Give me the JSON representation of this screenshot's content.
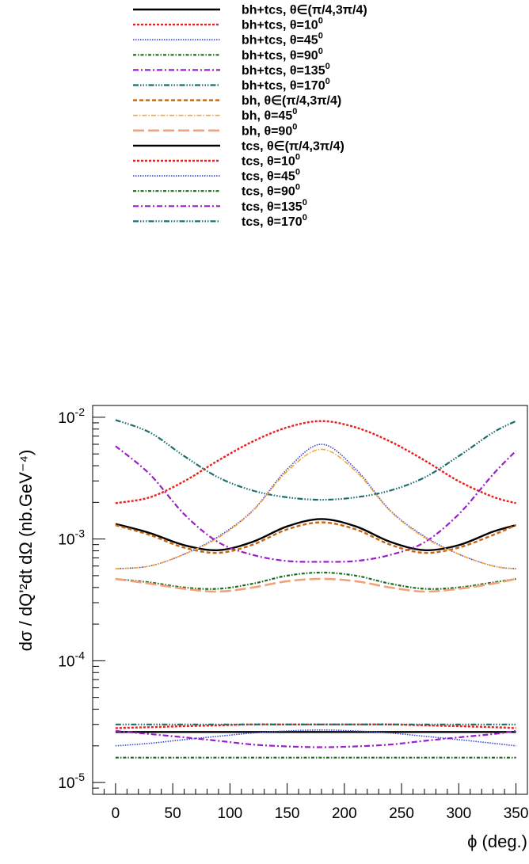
{
  "chart_data": {
    "type": "line",
    "title": "",
    "xlabel": "ϕ (deg.)",
    "ylabel": "dσ / dQ'²dt dΩ (nb.GeV⁻⁴)",
    "xlim": [
      -20,
      360
    ],
    "ylim": [
      8e-06,
      0.0125
    ],
    "yscale": "log",
    "x_ticks": [
      0,
      50,
      100,
      150,
      200,
      250,
      300,
      350
    ],
    "x_tick_labels": [
      "0",
      "50",
      "100",
      "150",
      "200",
      "250",
      "300",
      "350"
    ],
    "y_ticks": [
      1e-05,
      0.0001,
      0.001,
      0.01
    ],
    "y_tick_labels": [
      {
        "base": "10",
        "exp": "-5"
      },
      {
        "base": "10",
        "exp": "-4"
      },
      {
        "base": "10",
        "exp": "-3"
      },
      {
        "base": "10",
        "exp": "-2"
      }
    ],
    "legend_position": "top",
    "grid": false,
    "x": [
      0,
      30,
      60,
      90,
      120,
      150,
      180,
      210,
      240,
      270,
      300,
      330,
      350
    ],
    "series": [
      {
        "label_main": "bh+tcs, θ∈(π/4,3π/4)",
        "label_sup": "",
        "color": "#000000",
        "dash": "solid",
        "width": 2.4,
        "values": [
          0.00133,
          0.00112,
          0.00089,
          0.00081,
          0.00095,
          0.00127,
          0.00146,
          0.00127,
          0.00095,
          0.00081,
          0.00089,
          0.00115,
          0.0013
        ]
      },
      {
        "label_main": "bh+tcs, θ=10",
        "label_sup": "0",
        "color": "#e8211d",
        "dash": "3,2",
        "width": 2.4,
        "values": [
          0.00197,
          0.0022,
          0.00298,
          0.00443,
          0.00633,
          0.00825,
          0.0093,
          0.00825,
          0.00633,
          0.00443,
          0.00298,
          0.00222,
          0.00197
        ]
      },
      {
        "label_main": "bh+tcs, θ=45",
        "label_sup": "0",
        "color": "#3a45d8",
        "dash": "1.5,1.5",
        "width": 1.6,
        "values": [
          0.00057,
          0.0006,
          0.00075,
          0.00105,
          0.00172,
          0.00375,
          0.006,
          0.00375,
          0.00172,
          0.00105,
          0.00075,
          0.0006,
          0.00057
        ]
      },
      {
        "label_main": "bh+tcs, θ=90",
        "label_sup": "0",
        "color": "#1e6b1e",
        "dash": "4,2,1.5,2",
        "width": 2.2,
        "values": [
          0.00047,
          0.00044,
          0.0004,
          0.00039,
          0.00043,
          0.0005,
          0.00053,
          0.0005,
          0.00043,
          0.00039,
          0.0004,
          0.00044,
          0.00047
        ]
      },
      {
        "label_main": "bh+tcs, θ=135",
        "label_sup": "0",
        "color": "#9a1ec9",
        "dash": "7,3,2,3",
        "width": 2.2,
        "values": [
          0.0058,
          0.0034,
          0.0016,
          0.00094,
          0.00074,
          0.00066,
          0.00065,
          0.00066,
          0.00074,
          0.00094,
          0.0016,
          0.0034,
          0.0053
        ]
      },
      {
        "label_main": "bh+tcs, θ=170",
        "label_sup": "0",
        "color": "#1b6f6b",
        "dash": "7,2,1.5,2,1.5,2,1.5,2",
        "width": 2.2,
        "values": [
          0.0095,
          0.0075,
          0.0048,
          0.0032,
          0.0025,
          0.0022,
          0.0021,
          0.0022,
          0.0025,
          0.0032,
          0.0048,
          0.0075,
          0.0093
        ]
      },
      {
        "label_main": "bh, θ∈(π/4,3π/4)",
        "label_sup": "",
        "color": "#c7650f",
        "dash": "5,3",
        "width": 2.4,
        "values": [
          0.0013,
          0.00108,
          0.00085,
          0.00077,
          0.0009,
          0.0012,
          0.00137,
          0.0012,
          0.0009,
          0.00077,
          0.00085,
          0.00108,
          0.0013
        ]
      },
      {
        "label_main": "bh, θ=45",
        "label_sup": "0",
        "color": "#f4a638",
        "dash": "6,2,1.5,2",
        "width": 1.6,
        "values": [
          0.00057,
          0.0006,
          0.00075,
          0.00103,
          0.0017,
          0.0036,
          0.00545,
          0.0036,
          0.0017,
          0.00103,
          0.00075,
          0.0006,
          0.00057
        ]
      },
      {
        "label_main": "bh, θ=90",
        "label_sup": "0",
        "color": "#f4a07a",
        "dash": "14,5",
        "width": 2.6,
        "values": [
          0.00047,
          0.00043,
          0.00039,
          0.00037,
          0.0004,
          0.00045,
          0.00047,
          0.00045,
          0.0004,
          0.00037,
          0.00039,
          0.00043,
          0.00047
        ]
      },
      {
        "label_main": "tcs, θ∈(π/4,3π/4)",
        "label_sup": "",
        "color": "#000000",
        "dash": "solid",
        "width": 2.4,
        "values": [
          2.6e-05,
          2.6e-05,
          2.6e-05,
          2.6e-05,
          2.6e-05,
          2.6e-05,
          2.6e-05,
          2.6e-05,
          2.6e-05,
          2.6e-05,
          2.6e-05,
          2.6e-05,
          2.6e-05
        ]
      },
      {
        "label_main": "tcs, θ=10",
        "label_sup": "0",
        "color": "#e8211d",
        "dash": "3,2",
        "width": 2.4,
        "values": [
          2.8e-05,
          2.85e-05,
          2.9e-05,
          2.95e-05,
          3e-05,
          3e-05,
          3e-05,
          3e-05,
          3e-05,
          2.95e-05,
          2.9e-05,
          2.85e-05,
          2.8e-05
        ]
      },
      {
        "label_main": "tcs, θ=45",
        "label_sup": "0",
        "color": "#3a45d8",
        "dash": "1.5,1.5",
        "width": 1.6,
        "values": [
          2e-05,
          2.1e-05,
          2.25e-05,
          2.4e-05,
          2.55e-05,
          2.65e-05,
          2.7e-05,
          2.65e-05,
          2.55e-05,
          2.4e-05,
          2.25e-05,
          2.1e-05,
          2e-05
        ]
      },
      {
        "label_main": "tcs, θ=90",
        "label_sup": "0",
        "color": "#1e6b1e",
        "dash": "4,2,1.5,2",
        "width": 2.2,
        "values": [
          1.6e-05,
          1.6e-05,
          1.6e-05,
          1.6e-05,
          1.6e-05,
          1.6e-05,
          1.6e-05,
          1.6e-05,
          1.6e-05,
          1.6e-05,
          1.6e-05,
          1.6e-05,
          1.6e-05
        ]
      },
      {
        "label_main": "tcs, θ=135",
        "label_sup": "0",
        "color": "#9a1ec9",
        "dash": "7,3,2,3",
        "width": 2.2,
        "values": [
          2.65e-05,
          2.5e-05,
          2.35e-05,
          2.2e-05,
          2.05e-05,
          1.98e-05,
          1.95e-05,
          1.98e-05,
          2.05e-05,
          2.2e-05,
          2.35e-05,
          2.5e-05,
          2.65e-05
        ]
      },
      {
        "label_main": "tcs, θ=170",
        "label_sup": "0",
        "color": "#1b6f6b",
        "dash": "7,2,1.5,2,1.5,2,1.5,2",
        "width": 2.2,
        "values": [
          3e-05,
          3e-05,
          3e-05,
          3e-05,
          3e-05,
          3e-05,
          3e-05,
          3e-05,
          3e-05,
          3e-05,
          3e-05,
          3e-05,
          3e-05
        ]
      }
    ]
  }
}
